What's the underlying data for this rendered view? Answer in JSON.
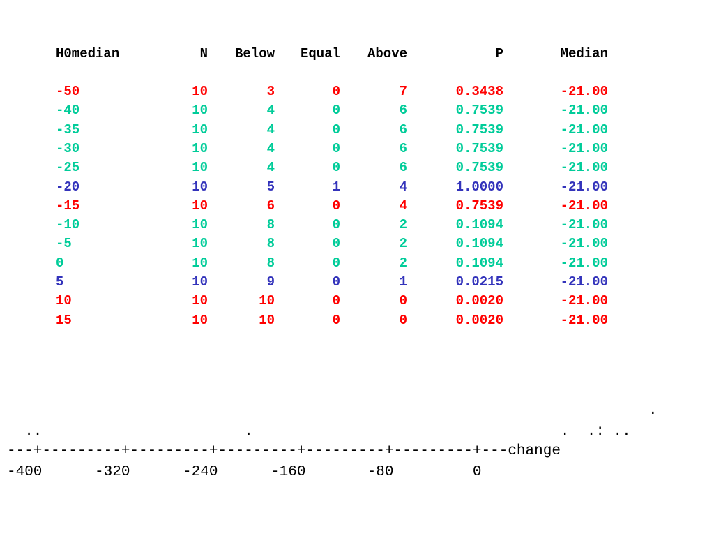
{
  "table": {
    "headers": {
      "h0median": "H0median",
      "n": "N",
      "below": "Below",
      "equal": "Equal",
      "above": "Above",
      "p": "P",
      "median": "Median"
    },
    "rows": [
      {
        "h0median": "-50",
        "n": "10",
        "below": "3",
        "equal": "0",
        "above": "7",
        "p": "0.3438",
        "median": "-21.00",
        "color": "red"
      },
      {
        "h0median": "-40",
        "n": "10",
        "below": "4",
        "equal": "0",
        "above": "6",
        "p": "0.7539",
        "median": "-21.00",
        "color": "teal"
      },
      {
        "h0median": "-35",
        "n": "10",
        "below": "4",
        "equal": "0",
        "above": "6",
        "p": "0.7539",
        "median": "-21.00",
        "color": "teal"
      },
      {
        "h0median": "-30",
        "n": "10",
        "below": "4",
        "equal": "0",
        "above": "6",
        "p": "0.7539",
        "median": "-21.00",
        "color": "teal"
      },
      {
        "h0median": "-25",
        "n": "10",
        "below": "4",
        "equal": "0",
        "above": "6",
        "p": "0.7539",
        "median": "-21.00",
        "color": "teal"
      },
      {
        "h0median": "-20",
        "n": "10",
        "below": "5",
        "equal": "1",
        "above": "4",
        "p": "1.0000",
        "median": "-21.00",
        "color": "blue"
      },
      {
        "h0median": "-15",
        "n": "10",
        "below": "6",
        "equal": "0",
        "above": "4",
        "p": "0.7539",
        "median": "-21.00",
        "color": "red"
      },
      {
        "h0median": "-10",
        "n": "10",
        "below": "8",
        "equal": "0",
        "above": "2",
        "p": "0.1094",
        "median": "-21.00",
        "color": "teal"
      },
      {
        "h0median": "-5",
        "n": "10",
        "below": "8",
        "equal": "0",
        "above": "2",
        "p": "0.1094",
        "median": "-21.00",
        "color": "teal"
      },
      {
        "h0median": "0",
        "n": "10",
        "below": "8",
        "equal": "0",
        "above": "2",
        "p": "0.1094",
        "median": "-21.00",
        "color": "teal"
      },
      {
        "h0median": "5",
        "n": "10",
        "below": "9",
        "equal": "0",
        "above": "1",
        "p": "0.0215",
        "median": "-21.00",
        "color": "blue"
      },
      {
        "h0median": "10",
        "n": "10",
        "below": "10",
        "equal": "0",
        "above": "0",
        "p": "0.0020",
        "median": "-21.00",
        "color": "red"
      },
      {
        "h0median": "15",
        "n": "10",
        "below": "10",
        "equal": "0",
        "above": "0",
        "p": "0.0020",
        "median": "-21.00",
        "color": "red"
      }
    ],
    "colors": {
      "red": "#ff0000",
      "teal": "#00cc99",
      "blue": "#3333bb"
    }
  },
  "dotplot": {
    "line_top": "                                                                         .",
    "line_dots": "  ..                       .                                   .  .: ..",
    "axis_line": "---+---------+---------+---------+---------+---------+---change",
    "tick_line": "-400      -320      -240      -160       -80         0"
  }
}
